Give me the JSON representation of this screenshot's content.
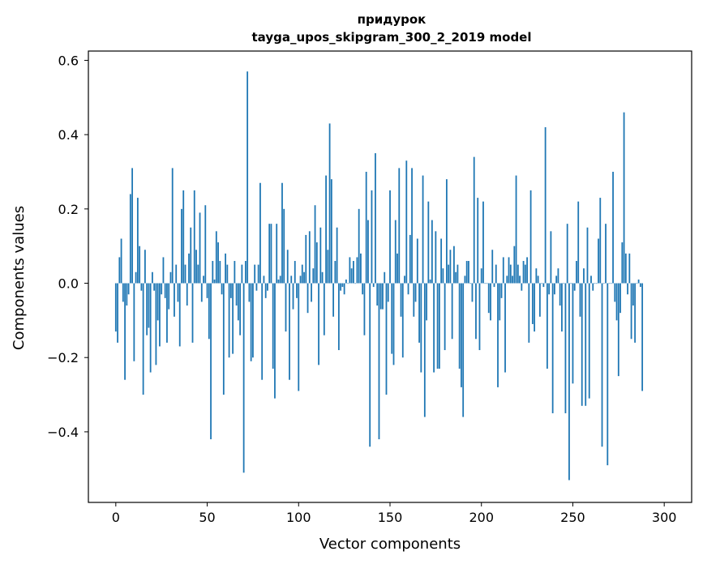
{
  "chart_data": {
    "type": "bar",
    "title_line1": "придурок",
    "title_line2": "tayga_upos_skipgram_300_2_2019 model",
    "xlabel": "Vector components",
    "ylabel": "Components values",
    "xlim": [
      -15,
      315
    ],
    "ylim": [
      -0.59,
      0.625
    ],
    "xticks": [
      0,
      50,
      100,
      150,
      200,
      250,
      300
    ],
    "xtick_labels": [
      "0",
      "50",
      "100",
      "150",
      "200",
      "250",
      "300"
    ],
    "yticks": [
      -0.4,
      -0.2,
      0.0,
      0.2,
      0.4,
      0.6
    ],
    "ytick_labels": [
      "−0.4",
      "−0.2",
      "0.0",
      "0.2",
      "0.4",
      "0.6"
    ],
    "bar_color": "#1f77b4",
    "grid": false,
    "values": [
      -0.13,
      -0.16,
      0.07,
      0.12,
      -0.05,
      -0.26,
      -0.06,
      -0.03,
      0.24,
      0.31,
      -0.21,
      0.03,
      0.23,
      0.1,
      -0.02,
      -0.3,
      0.09,
      -0.14,
      -0.12,
      -0.24,
      0.03,
      -0.02,
      -0.22,
      -0.1,
      -0.17,
      -0.03,
      0.07,
      -0.04,
      -0.16,
      -0.07,
      0.03,
      0.31,
      -0.09,
      0.05,
      -0.05,
      -0.17,
      0.2,
      0.25,
      0.05,
      -0.06,
      0.08,
      0.15,
      -0.16,
      0.25,
      0.09,
      0.05,
      0.19,
      -0.05,
      0.02,
      0.21,
      -0.04,
      -0.15,
      -0.42,
      0.06,
      0.01,
      0.14,
      0.11,
      0.06,
      -0.03,
      -0.3,
      0.08,
      0.05,
      -0.2,
      -0.04,
      -0.19,
      0.06,
      -0.06,
      -0.1,
      -0.14,
      0.05,
      -0.51,
      0.06,
      0.57,
      -0.05,
      -0.21,
      -0.2,
      0.05,
      -0.02,
      0.05,
      0.27,
      -0.26,
      0.02,
      -0.04,
      -0.02,
      0.16,
      0.16,
      -0.23,
      -0.31,
      0.16,
      0.01,
      0.02,
      0.27,
      0.2,
      -0.13,
      0.09,
      -0.26,
      0.02,
      -0.07,
      0.06,
      -0.04,
      -0.29,
      0.02,
      0.05,
      0.03,
      0.13,
      -0.08,
      0.14,
      -0.05,
      0.04,
      0.21,
      0.11,
      -0.22,
      0.15,
      0.03,
      -0.14,
      0.29,
      0.09,
      0.43,
      0.28,
      -0.09,
      0.06,
      0.15,
      -0.18,
      -0.02,
      -0.01,
      -0.03,
      0.01,
      0.0,
      0.07,
      0.04,
      0.06,
      0.0,
      0.07,
      0.2,
      0.08,
      -0.03,
      -0.14,
      0.3,
      0.17,
      -0.44,
      0.25,
      -0.01,
      0.35,
      -0.06,
      -0.42,
      -0.07,
      -0.07,
      0.03,
      -0.3,
      -0.05,
      0.25,
      -0.19,
      -0.22,
      0.17,
      0.08,
      0.31,
      -0.09,
      -0.2,
      0.02,
      0.33,
      -0.03,
      0.13,
      0.31,
      -0.09,
      -0.05,
      0.12,
      -0.16,
      -0.24,
      0.29,
      -0.36,
      -0.1,
      0.22,
      0.01,
      0.17,
      -0.24,
      0.14,
      -0.23,
      -0.23,
      0.12,
      0.04,
      -0.18,
      0.28,
      0.05,
      0.09,
      -0.15,
      0.1,
      0.03,
      0.05,
      -0.23,
      -0.28,
      -0.36,
      0.02,
      0.06,
      0.06,
      0.0,
      -0.05,
      0.34,
      -0.15,
      0.23,
      -0.18,
      0.04,
      0.22,
      0.0,
      0.0,
      -0.08,
      -0.1,
      0.09,
      -0.01,
      0.05,
      -0.28,
      -0.1,
      -0.04,
      0.07,
      -0.24,
      0.02,
      0.07,
      0.05,
      0.02,
      0.1,
      0.29,
      0.05,
      0.02,
      -0.02,
      0.06,
      0.05,
      0.07,
      -0.16,
      0.25,
      -0.11,
      -0.13,
      0.04,
      0.02,
      -0.09,
      0.0,
      -0.01,
      0.42,
      -0.23,
      -0.03,
      0.14,
      -0.35,
      -0.03,
      0.02,
      0.04,
      -0.06,
      -0.13,
      0.0,
      -0.35,
      0.16,
      -0.53,
      0.0,
      -0.27,
      -0.02,
      0.06,
      0.22,
      -0.09,
      -0.33,
      0.04,
      -0.33,
      0.15,
      -0.31,
      0.02,
      -0.02,
      0.0,
      0.0,
      0.12,
      0.23,
      -0.44,
      0.0,
      0.16,
      -0.49,
      0.0,
      0.0,
      0.3,
      -0.05,
      -0.1,
      -0.25,
      -0.08,
      0.11,
      0.46,
      0.08,
      -0.03,
      0.08,
      -0.15,
      -0.06,
      -0.16,
      0.0,
      0.01,
      -0.01,
      -0.29
    ]
  }
}
